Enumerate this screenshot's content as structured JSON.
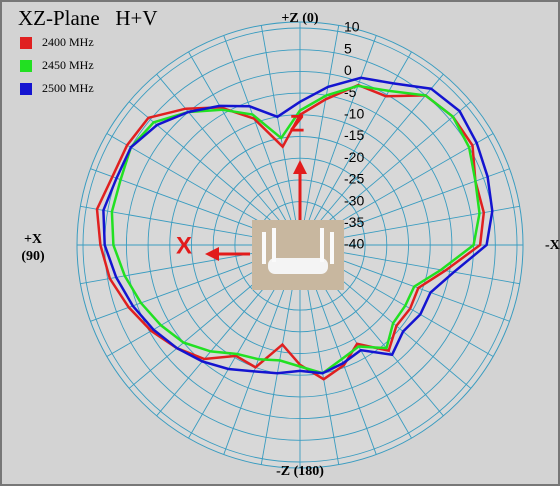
{
  "chart_data": {
    "type": "polar",
    "title": "XZ-Plane   H+V",
    "angle_labels": {
      "top": "+Z (0)",
      "left_main": "+X",
      "left_sub": "(90)",
      "bottom": "-Z (180)",
      "right": "-X"
    },
    "annotations": [
      "X",
      "Z"
    ],
    "theta": [
      0,
      10,
      20,
      30,
      40,
      50,
      60,
      70,
      80,
      90,
      100,
      110,
      120,
      130,
      140,
      150,
      160,
      170,
      180,
      190,
      200,
      210,
      220,
      230,
      240,
      250,
      260,
      270,
      280,
      290,
      300,
      310,
      320,
      330,
      340,
      350
    ],
    "rlim": [
      -40,
      10
    ],
    "rticks": [
      10,
      5,
      0,
      -5,
      -10,
      -15,
      -20,
      -25,
      -30,
      -35,
      -40
    ],
    "grid": true,
    "series": [
      {
        "name": "2400 MHz",
        "color": "#e02020",
        "values": [
          -10,
          -17,
          -9,
          -3.4,
          1,
          5.6,
          6,
          6,
          7.5,
          6,
          4.5,
          2,
          -0.4,
          -3,
          -5.7,
          -10.5,
          -10,
          -16.7,
          -12.4,
          -8.6,
          -10.5,
          -13.7,
          -8.2,
          -11,
          -10.7,
          -11,
          -6,
          1.5,
          3,
          3,
          5.9,
          6,
          5,
          -0.4,
          -0.8,
          -5.9
        ]
      },
      {
        "name": "2450 MHz",
        "color": "#22e022",
        "values": [
          -9,
          -15,
          -8,
          -4,
          0,
          4,
          5,
          4,
          4,
          3,
          1,
          -1,
          -3,
          -5,
          -8,
          -11,
          -12,
          -13,
          -12,
          -10,
          -12,
          -13,
          -9,
          -12,
          -12,
          -12,
          -7,
          0,
          2,
          3,
          5,
          6,
          5,
          1,
          -1,
          -5
        ]
      },
      {
        "name": "2500 MHz",
        "color": "#1414d0",
        "values": [
          -7,
          -10,
          -6,
          -3,
          0,
          3,
          5,
          5,
          6,
          5,
          3,
          1,
          -1,
          -3,
          -5,
          -7,
          -9,
          -10,
          -11,
          -10,
          -11,
          -12,
          -7,
          -9,
          -8,
          -8,
          -4,
          3,
          5,
          6,
          7,
          8,
          7,
          3,
          1,
          -3
        ]
      }
    ]
  }
}
